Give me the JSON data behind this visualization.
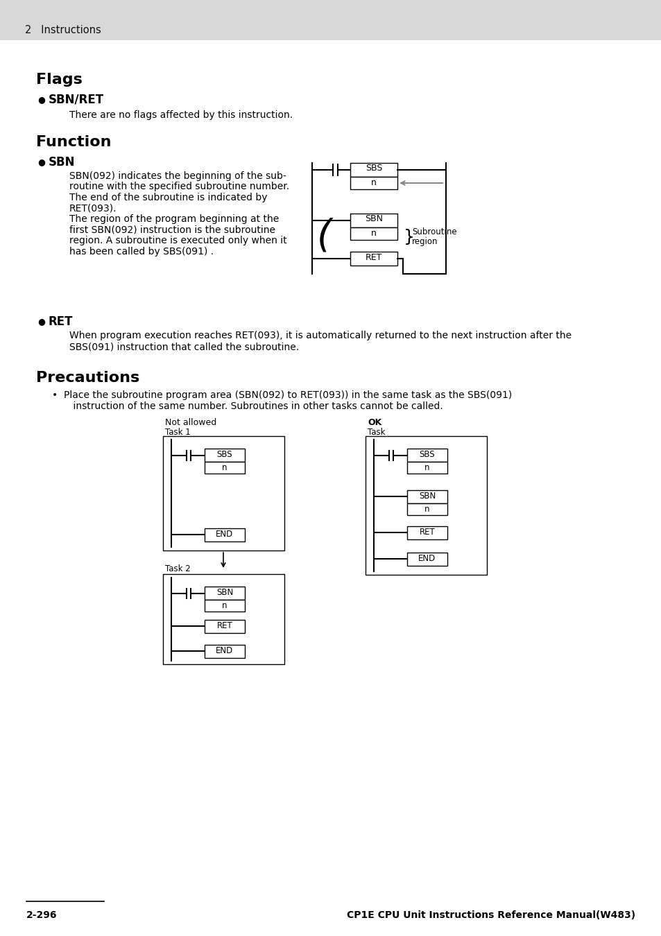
{
  "header_text": "2   Instructions",
  "header_bg": "#d8d8d8",
  "page_bg": "#ffffff",
  "section1_title": "Flags",
  "section1_bullet": "SBN/RET",
  "section1_body": "There are no flags affected by this instruction.",
  "section2_title": "Function",
  "section2_bullet": "SBN",
  "section2_body_lines": [
    "SBN(092) indicates the beginning of the sub-",
    "routine with the specified subroutine number.",
    "The end of the subroutine is indicated by",
    "RET(093).",
    "The region of the program beginning at the",
    "first SBN(092) instruction is the subroutine",
    "region. A subroutine is executed only when it",
    "has been called by SBS(091) ."
  ],
  "section3_bullet": "RET",
  "section3_body_line1": "When program execution reaches RET(093), it is automatically returned to the next instruction after the",
  "section3_body_line2": "SBS(091) instruction that called the subroutine.",
  "section4_title": "Precautions",
  "section4_body_line1": "•  Place the subroutine program area (SBN(092) to RET(093)) in the same task as the SBS(091)",
  "section4_body_line2": "    instruction of the same number. Subroutines in other tasks cannot be called.",
  "footer_left": "2-296",
  "footer_right": "CP1E CPU Unit Instructions Reference Manual(W483)"
}
